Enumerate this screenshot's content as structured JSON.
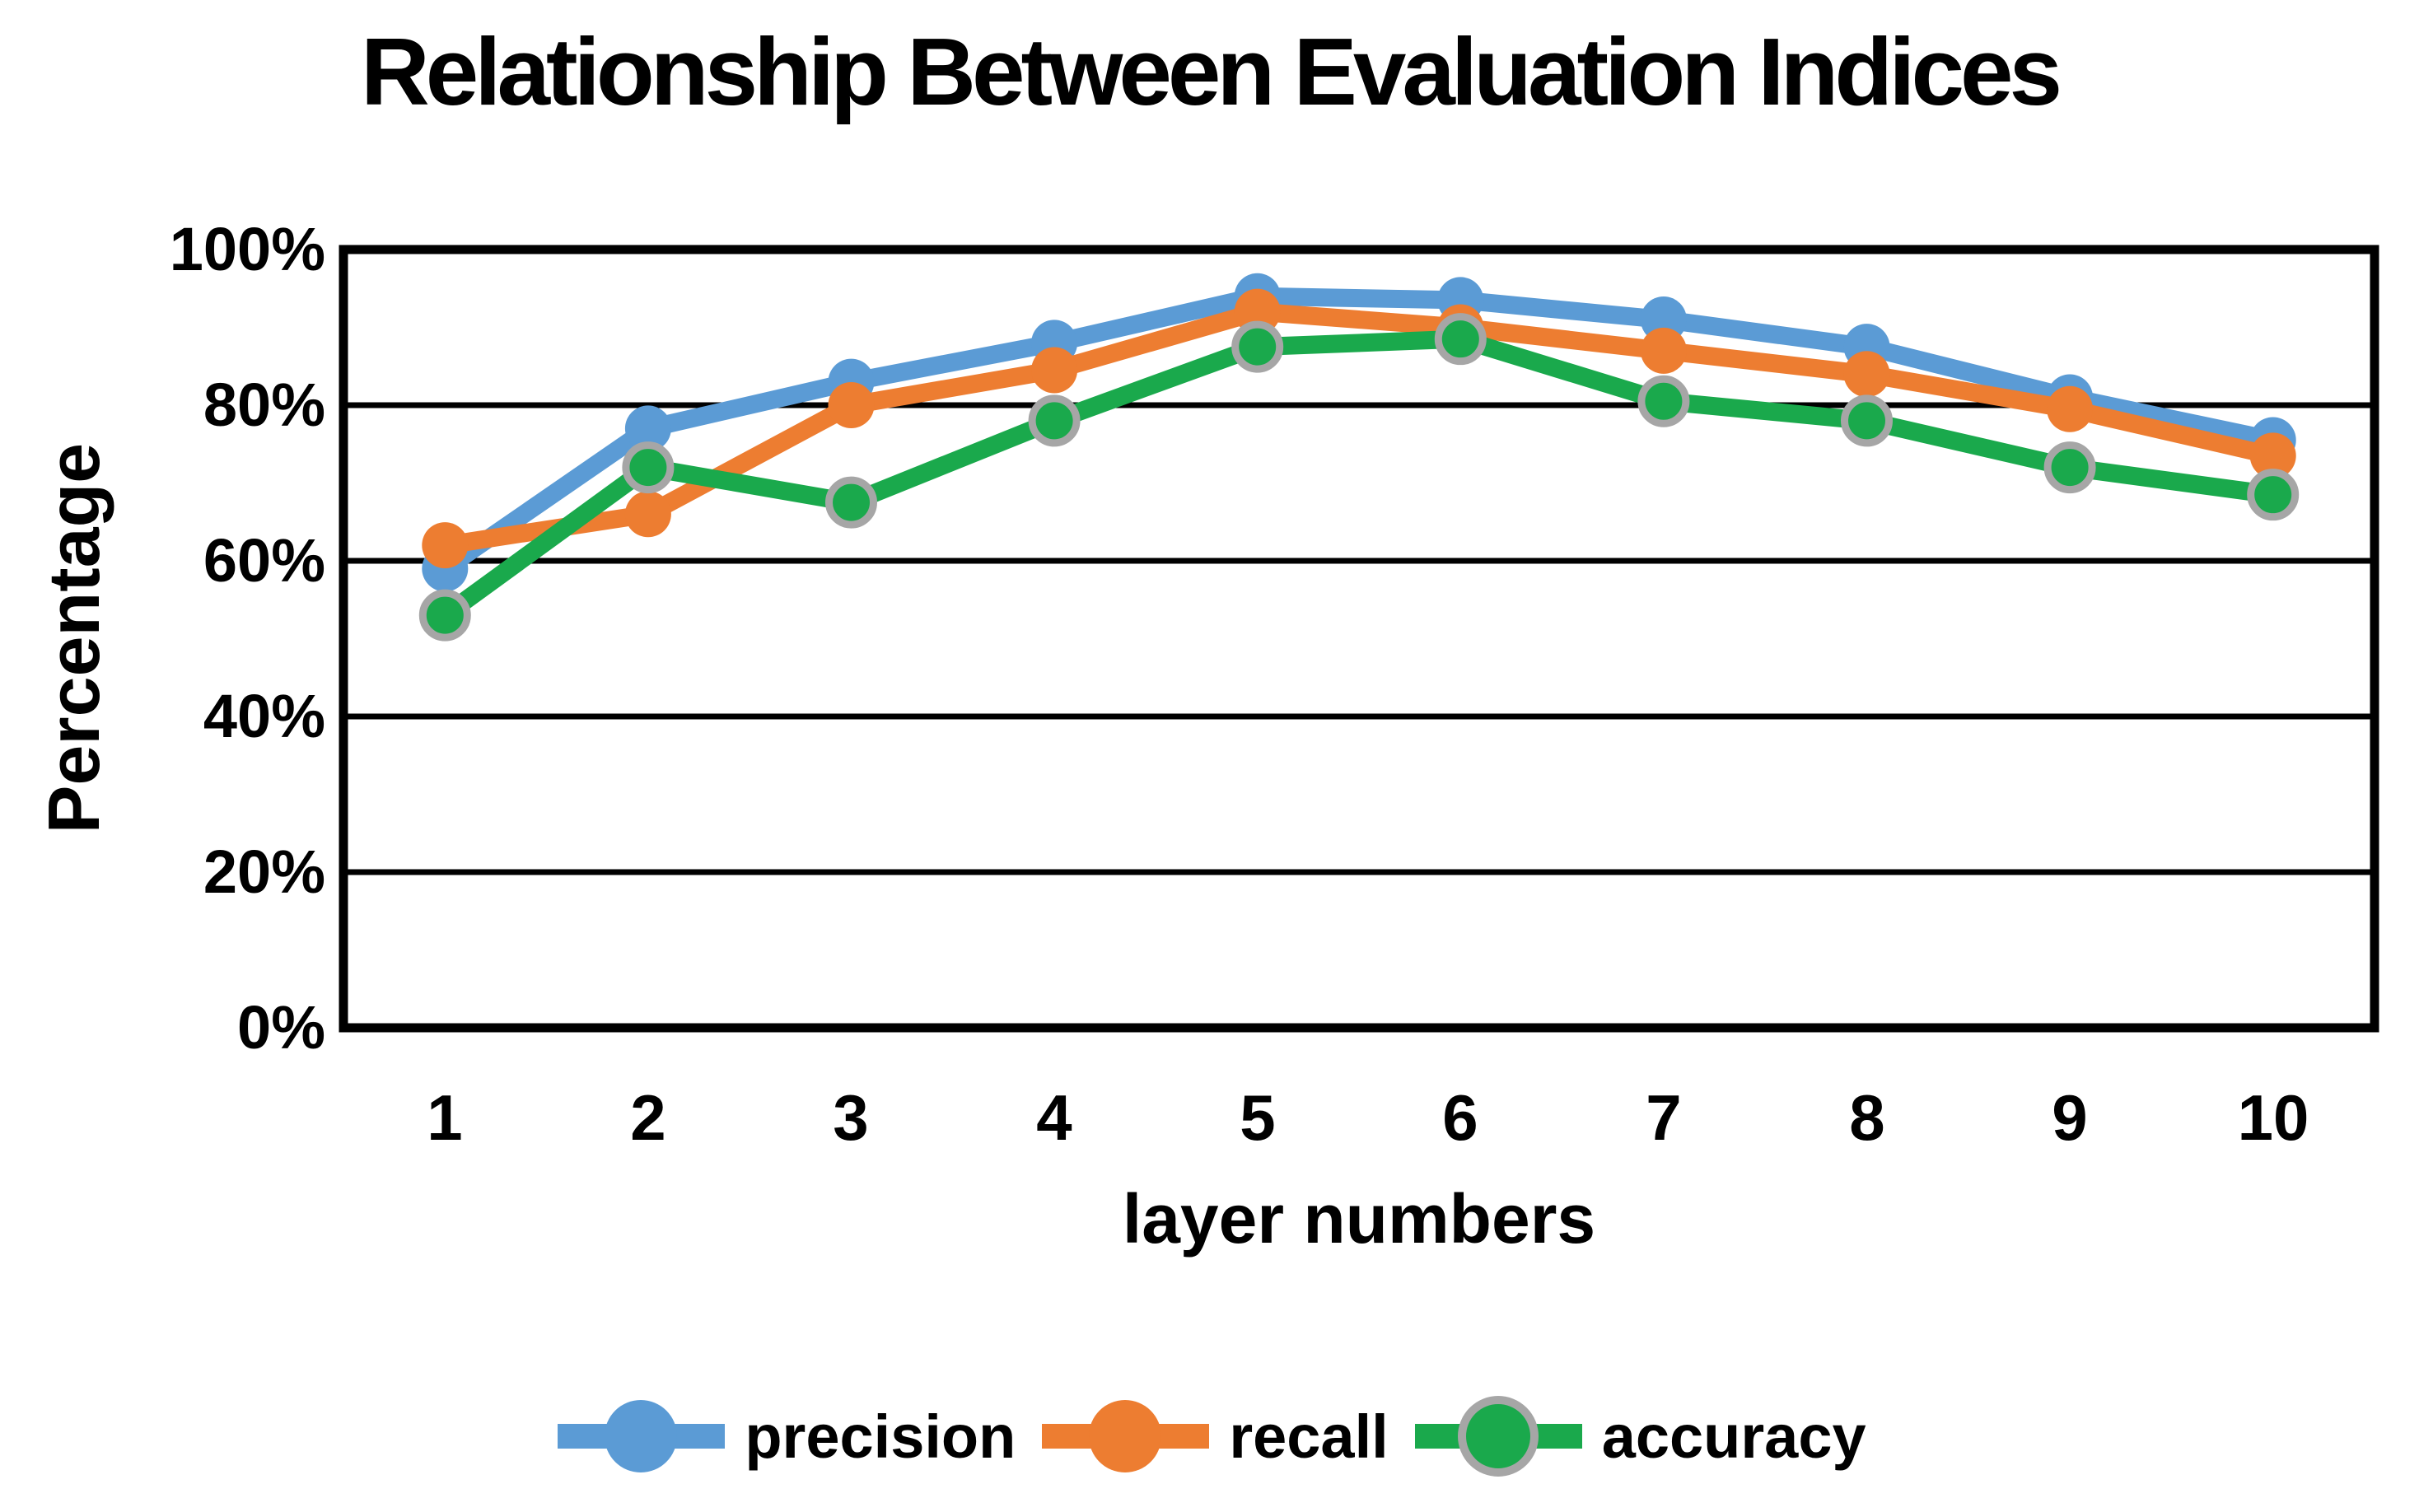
{
  "title": "Relationship Between Evaluation Indices",
  "axis": {
    "y_title": "Percentage",
    "x_title": "layer numbers",
    "y_ticks": [
      "100%",
      "80%",
      "60%",
      "40%",
      "20%",
      "0%"
    ],
    "axis_color": "#000000"
  },
  "chart_data": {
    "type": "line",
    "title": "Relationship Between Evaluation Indices",
    "xlabel": "layer numbers",
    "ylabel": "Percentage",
    "categories": [
      "1",
      "2",
      "3",
      "4",
      "5",
      "6",
      "7",
      "8",
      "9",
      "10"
    ],
    "ylim": [
      0,
      100
    ],
    "y_tick_interval_pct": 20,
    "gridlines_pct": [
      20,
      40,
      60,
      80
    ],
    "grid": "horizontal-on",
    "legend_position": "bottom",
    "series": [
      {
        "name": "precision",
        "color": "#5B9BD5",
        "values": [
          59,
          77,
          83,
          88,
          94,
          93.5,
          91,
          87.5,
          81,
          75.5
        ]
      },
      {
        "name": "recall",
        "color": "#ED7D31",
        "values": [
          62,
          66,
          80,
          84.5,
          92,
          90,
          87,
          84,
          79.5,
          73.5
        ]
      },
      {
        "name": "accuracy",
        "color": "#1AA94C",
        "marker_ring": "#A6A6A6",
        "values": [
          53,
          72,
          67.5,
          78,
          87.5,
          88.5,
          80.5,
          78,
          72,
          68.5
        ]
      }
    ]
  }
}
